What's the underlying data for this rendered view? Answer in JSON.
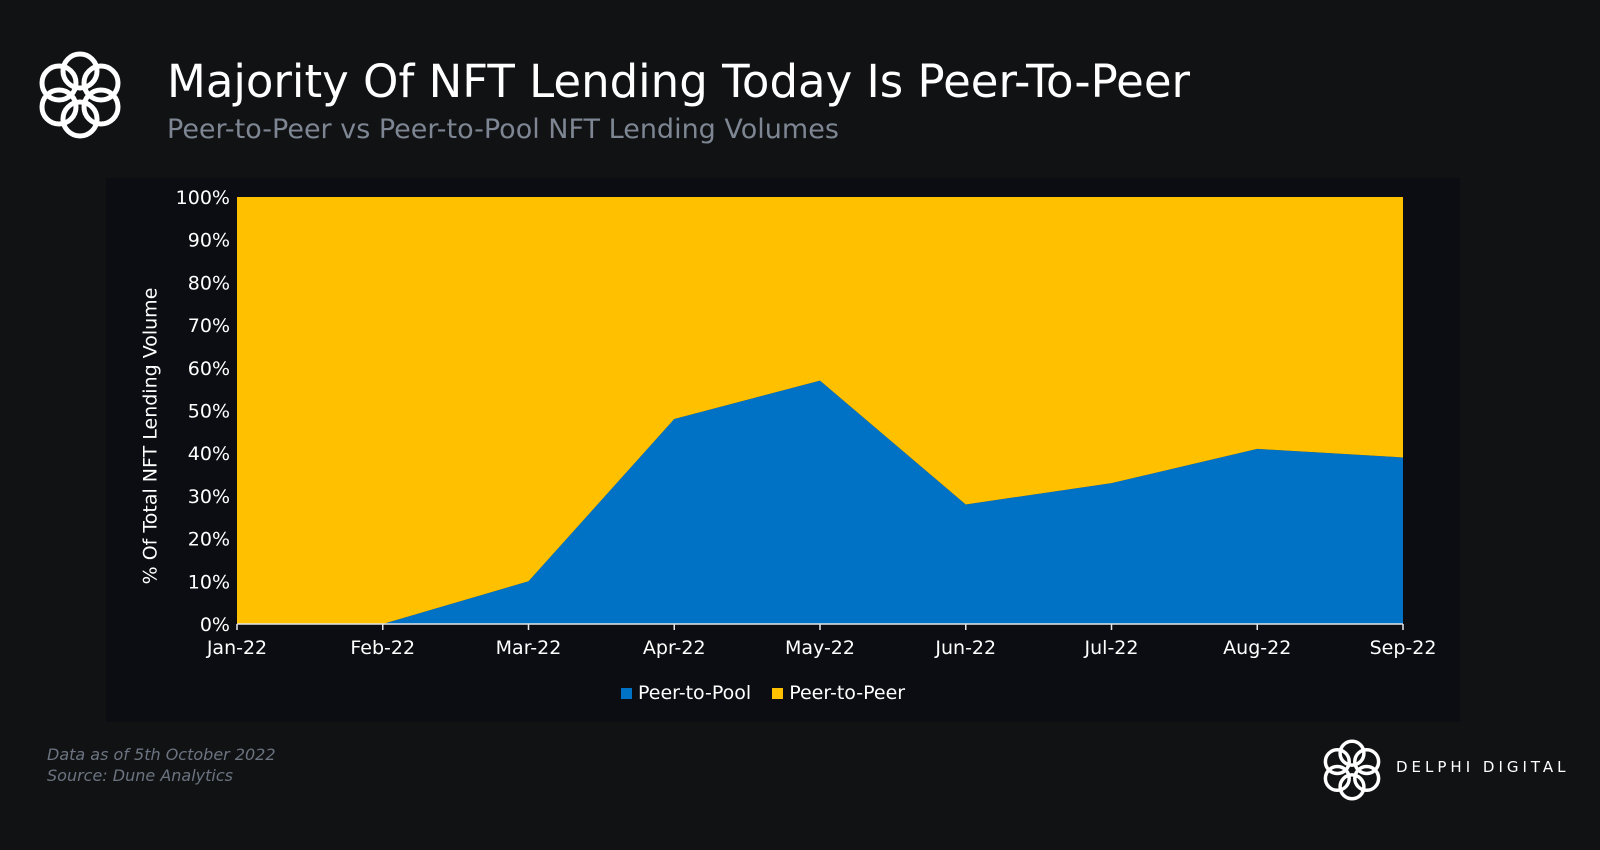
{
  "header": {
    "title": "Majority Of NFT Lending Today Is Peer-To-Peer",
    "subtitle": "Peer-to-Peer vs Peer-to-Pool NFT Lending Volumes"
  },
  "footnote": {
    "line1": "Data as of 5th October 2022",
    "line2": "Source:  Dune Analytics"
  },
  "brand": {
    "name": "DELPHI DIGITAL",
    "logo_icon": "delphi-knot-icon"
  },
  "colors": {
    "background": "#111214",
    "panel": "#0b0d12",
    "peer_to_pool": "#0072c6",
    "peer_to_peer": "#ffc000",
    "subtitle": "#7d8692"
  },
  "chart_data": {
    "type": "area",
    "stacked": true,
    "normalized": true,
    "title": "Majority Of NFT Lending Today Is Peer-To-Peer",
    "subtitle": "Peer-to-Peer vs Peer-to-Pool NFT Lending Volumes",
    "xlabel": "",
    "ylabel": "% Of Total NFT Lending Volume",
    "categories": [
      "Jan-22",
      "Feb-22",
      "Mar-22",
      "Apr-22",
      "May-22",
      "Jun-22",
      "Jul-22",
      "Aug-22",
      "Sep-22"
    ],
    "series": [
      {
        "name": "Peer-to-Pool",
        "color": "#0072c6",
        "values": [
          0,
          0,
          10,
          48,
          57,
          28,
          33,
          41,
          39
        ]
      },
      {
        "name": "Peer-to-Peer",
        "color": "#ffc000",
        "values": [
          100,
          100,
          90,
          52,
          43,
          72,
          67,
          59,
          61
        ]
      }
    ],
    "ylim": [
      0,
      100
    ],
    "yticks": [
      0,
      10,
      20,
      30,
      40,
      50,
      60,
      70,
      80,
      90,
      100
    ],
    "ytick_labels": [
      "0%",
      "10%",
      "20%",
      "30%",
      "40%",
      "50%",
      "60%",
      "70%",
      "80%",
      "90%",
      "100%"
    ],
    "grid": false,
    "legend_position": "bottom-center"
  }
}
